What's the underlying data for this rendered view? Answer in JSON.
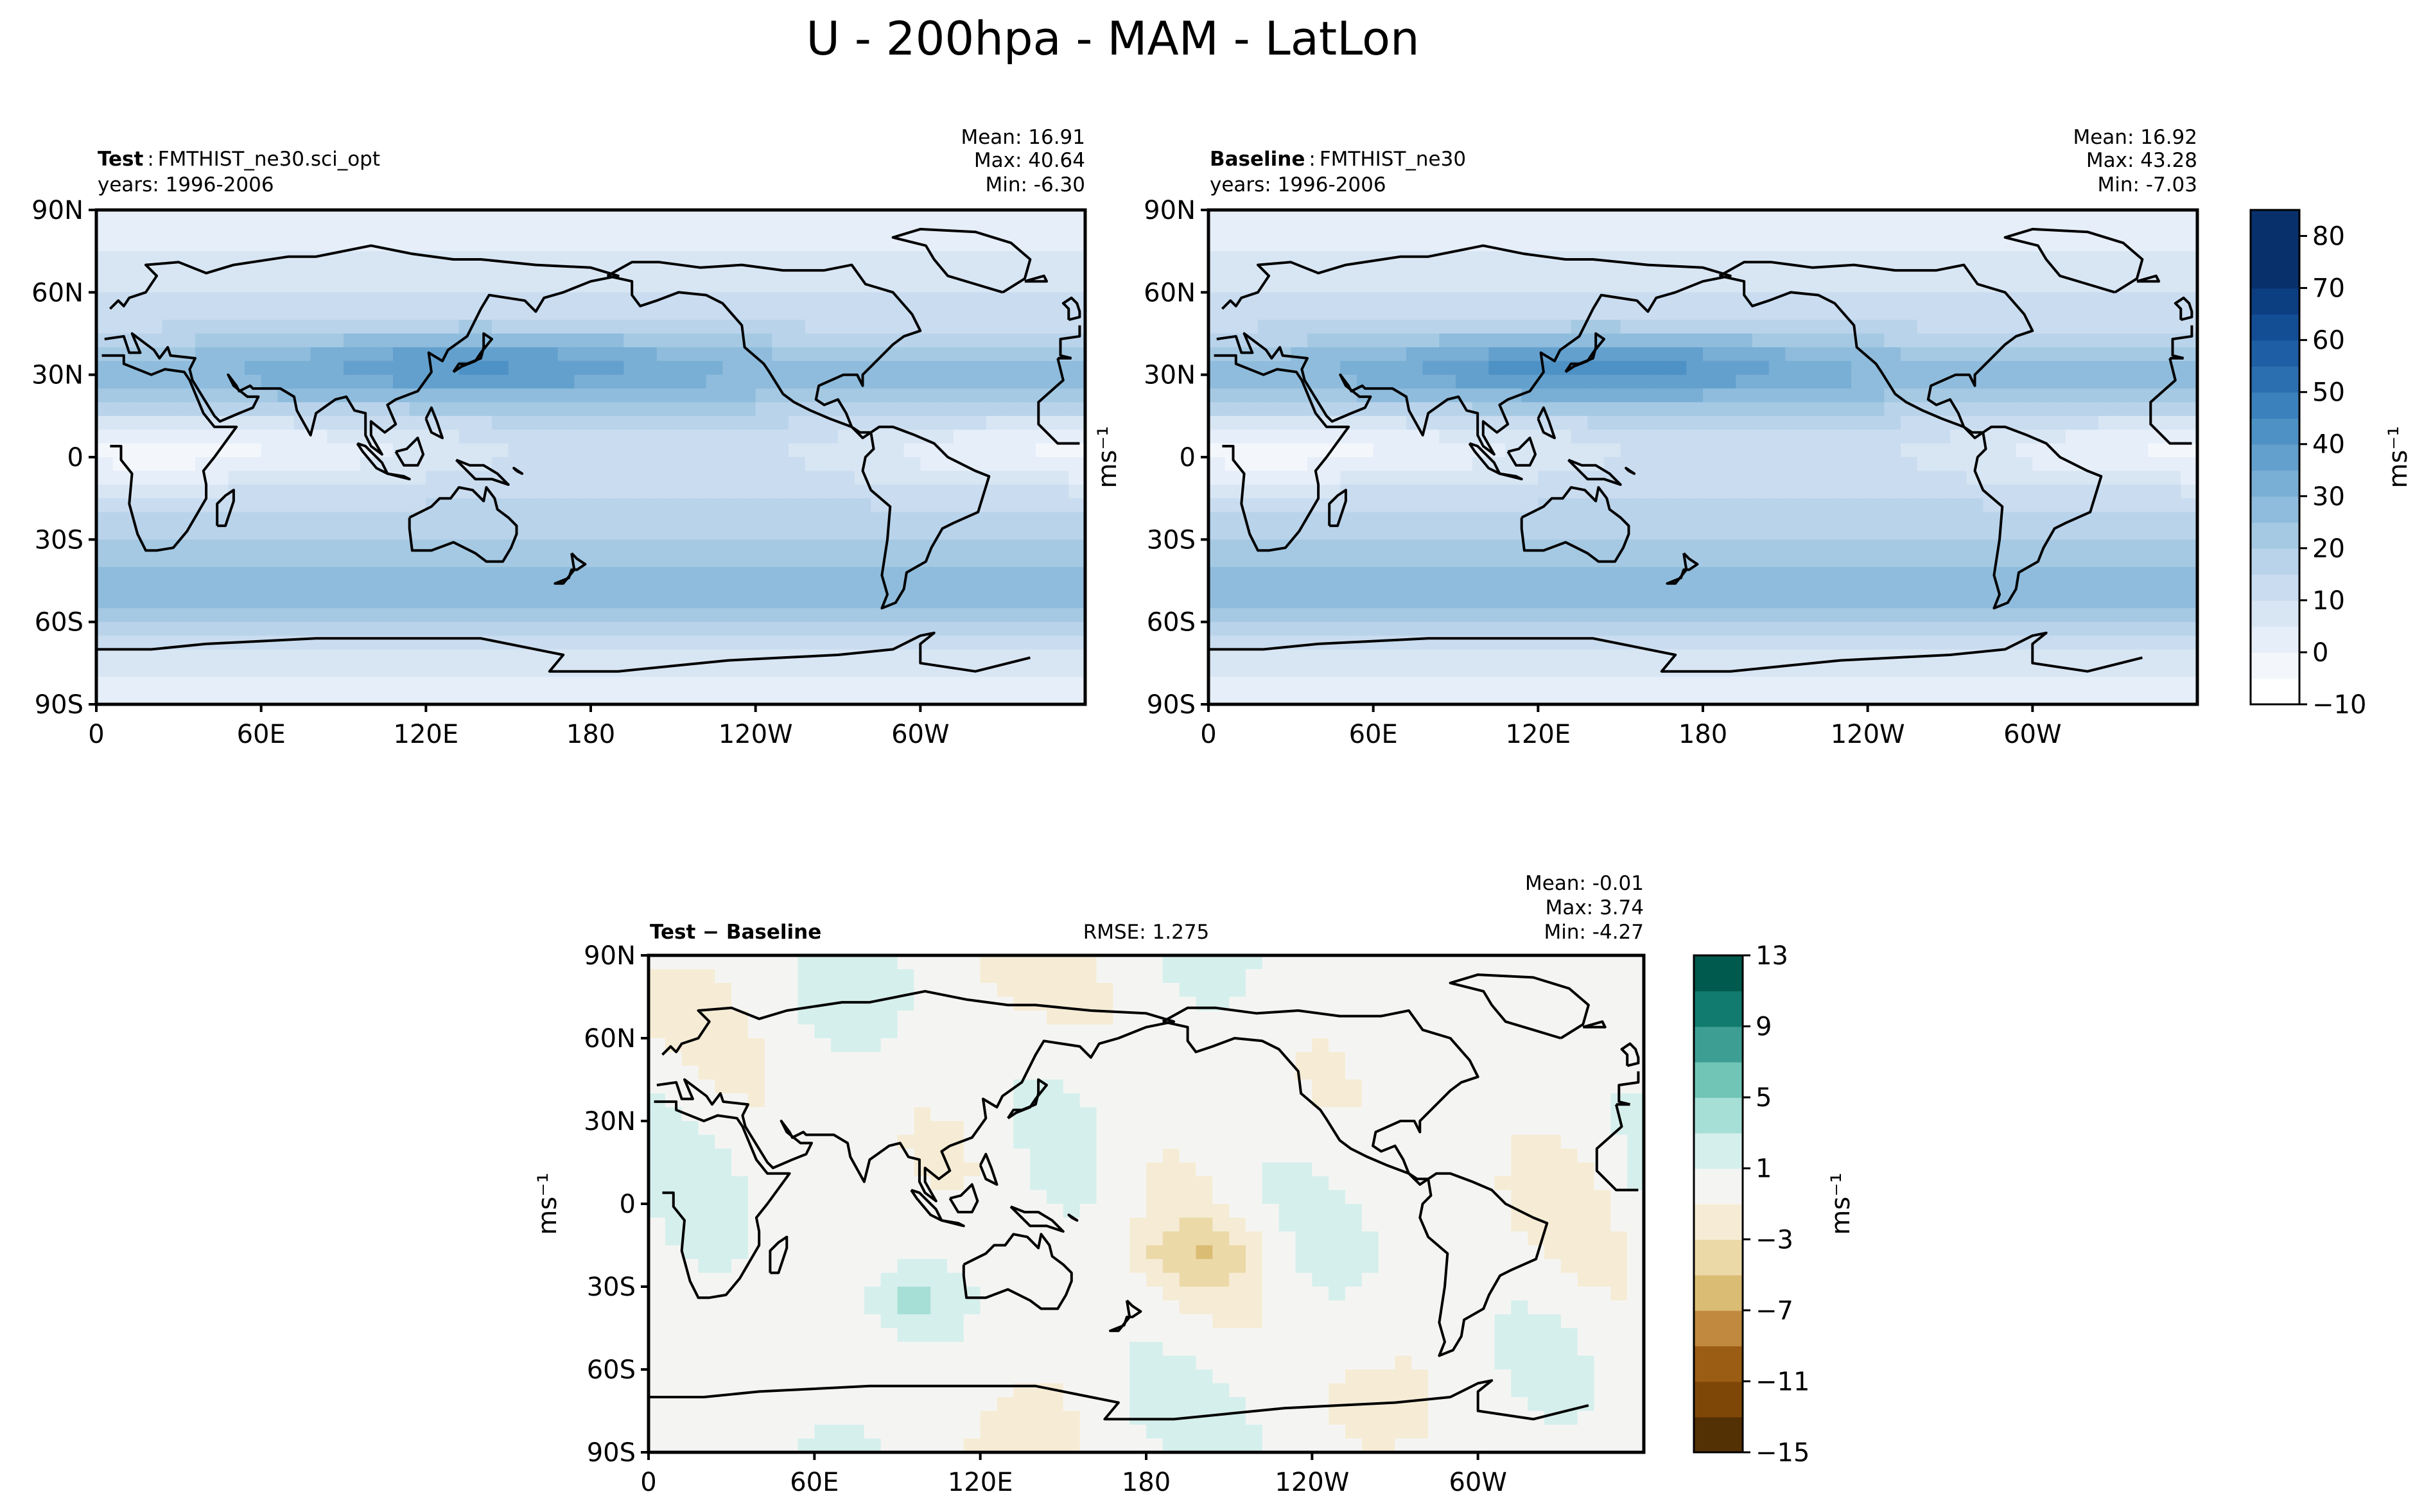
{
  "suptitle": "U - 200hpa - MAM - LatLon",
  "unit_label": "ms⁻¹",
  "colors": {
    "main_cmap": [
      "#ffffff",
      "#f3f7fc",
      "#e6eef9",
      "#d8e6f4",
      "#cadcef",
      "#b9d3ea",
      "#a5c9e3",
      "#8fbcdc",
      "#79aed5",
      "#63a0cd",
      "#4e91c5",
      "#3b81bc",
      "#2b6fb0",
      "#1e5ea4",
      "#134e95",
      "#0c3e82",
      "#08306b"
    ],
    "diff_cmap": [
      "#543005",
      "#7f4707",
      "#9b5d13",
      "#c0893f",
      "#dbbc74",
      "#ecd9a8",
      "#f6ecd5",
      "#f4f5f3",
      "#d5efec",
      "#a6dfd6",
      "#71c5b6",
      "#3d9f93",
      "#127b6f",
      "#005a4d",
      "#003c30"
    ]
  },
  "chart_data": [
    {
      "type": "heatmap",
      "panel": "test",
      "label": "Test",
      "sep": ":",
      "case": "FMTHIST_ne30.sci_opt",
      "years": "years: 1996-2006",
      "stats": {
        "mean": "Mean: 16.91",
        "max": "Max: 40.64",
        "min": "Min: -6.30"
      },
      "field_params": {
        "jet_nh_lat": 35,
        "jet_nh_lon": 140,
        "jet_nh_speed": 40.6,
        "jet_sh_lat": -50,
        "jet_sh_speed": 31,
        "tropical_min": -6.3
      },
      "xticks": [
        "0",
        "60E",
        "120E",
        "180",
        "120W",
        "60W"
      ],
      "yticks": [
        "90N",
        "60N",
        "30N",
        "0",
        "30S",
        "60S",
        "90S"
      ],
      "xlim": [
        0,
        360
      ],
      "ylim": [
        -90,
        90
      ]
    },
    {
      "type": "heatmap",
      "panel": "baseline",
      "label": "Baseline",
      "sep": ":",
      "case": "FMTHIST_ne30",
      "years": "years: 1996-2006",
      "stats": {
        "mean": "Mean: 16.92",
        "max": "Max: 43.28",
        "min": "Min: -7.03"
      },
      "field_params": {
        "jet_nh_lat": 34,
        "jet_nh_lon": 140,
        "jet_nh_speed": 43.3,
        "jet_sh_lat": -50,
        "jet_sh_speed": 31,
        "tropical_min": -7.0
      },
      "xticks": [
        "0",
        "60E",
        "120E",
        "180",
        "120W",
        "60W"
      ],
      "yticks": [
        "90N",
        "60N",
        "30N",
        "0",
        "30S",
        "60S",
        "90S"
      ],
      "xlim": [
        0,
        360
      ],
      "ylim": [
        -90,
        90
      ]
    },
    {
      "type": "heatmap",
      "panel": "diff",
      "label": "Test − Baseline",
      "rmse": "RMSE: 1.275",
      "stats": {
        "mean": "Mean: -0.01",
        "max": "Max:  3.74",
        "min": "Min: -4.27"
      },
      "xticks": [
        "0",
        "60E",
        "120E",
        "180",
        "120W",
        "60W"
      ],
      "yticks": [
        "90N",
        "60N",
        "30N",
        "0",
        "30S",
        "60S",
        "90S"
      ],
      "xlim": [
        0,
        360
      ],
      "ylim": [
        -90,
        90
      ]
    }
  ],
  "colorbars": {
    "main": {
      "levels": [
        -10,
        -5,
        0,
        5,
        10,
        15,
        20,
        25,
        30,
        35,
        40,
        45,
        50,
        55,
        60,
        65,
        70,
        75,
        80,
        85
      ],
      "tick_labels": [
        "−10",
        "0",
        "10",
        "20",
        "30",
        "40",
        "50",
        "60",
        "70",
        "80"
      ],
      "tick_values": [
        -10,
        0,
        10,
        20,
        30,
        40,
        50,
        60,
        70,
        80
      ],
      "range": [
        -10,
        85
      ]
    },
    "diff": {
      "levels": [
        -15,
        -13,
        -11,
        -9,
        -7,
        -5,
        -3,
        -1,
        1,
        3,
        5,
        7,
        9,
        11,
        13
      ],
      "tick_labels": [
        "−15",
        "−11",
        "−7",
        "−3",
        "1",
        "5",
        "9",
        "13"
      ],
      "tick_values": [
        -15,
        -11,
        -7,
        -3,
        1,
        5,
        9,
        13
      ],
      "range": [
        -15,
        13
      ]
    }
  },
  "coastlines": [
    "Africa",
    "Europe",
    "Asia",
    "Arabia",
    "India",
    "Southeast Asia",
    "Japan",
    "Indonesia",
    "Australia",
    "New Zealand",
    "North America",
    "Greenland",
    "South America",
    "Antarctica",
    "Madagascar",
    "UK",
    "Iceland"
  ]
}
